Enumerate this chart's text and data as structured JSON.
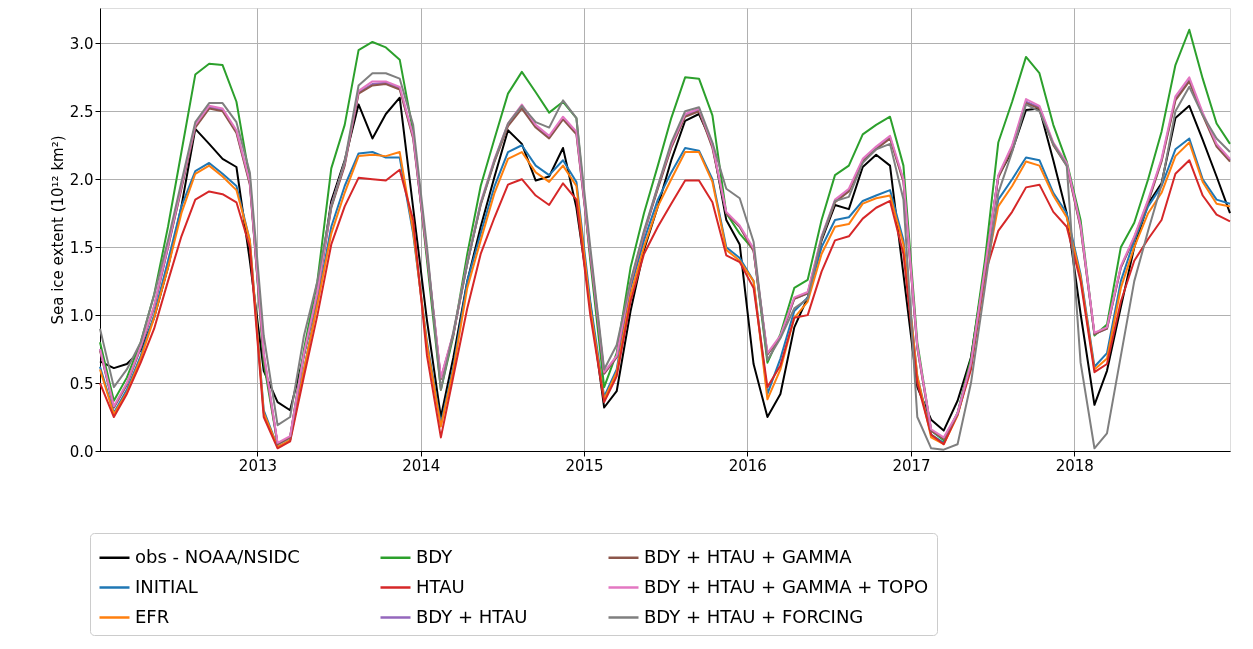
{
  "chart_data": {
    "type": "line",
    "ylabel": "Sea ice extent (10¹² km²)",
    "x": [
      "2012-01-15",
      "2012-02-15",
      "2012-03-15",
      "2012-04-15",
      "2012-05-15",
      "2012-06-15",
      "2012-07-15",
      "2012-08-15",
      "2012-09-15",
      "2012-10-15",
      "2012-11-15",
      "2012-12-15",
      "2013-01-15",
      "2013-02-15",
      "2013-03-15",
      "2013-04-15",
      "2013-05-15",
      "2013-06-15",
      "2013-07-15",
      "2013-08-15",
      "2013-09-15",
      "2013-10-15",
      "2013-11-15",
      "2013-12-15",
      "2014-01-15",
      "2014-02-15",
      "2014-03-15",
      "2014-04-15",
      "2014-05-15",
      "2014-06-15",
      "2014-07-15",
      "2014-08-15",
      "2014-09-15",
      "2014-10-15",
      "2014-11-15",
      "2014-12-15",
      "2015-01-15",
      "2015-02-15",
      "2015-03-15",
      "2015-04-15",
      "2015-05-15",
      "2015-06-15",
      "2015-07-15",
      "2015-08-15",
      "2015-09-15",
      "2015-10-15",
      "2015-11-15",
      "2015-12-15",
      "2016-01-15",
      "2016-02-15",
      "2016-03-15",
      "2016-04-15",
      "2016-05-15",
      "2016-06-15",
      "2016-07-15",
      "2016-08-15",
      "2016-09-15",
      "2016-10-15",
      "2016-11-15",
      "2016-12-15",
      "2017-01-15",
      "2017-02-15",
      "2017-03-15",
      "2017-04-15",
      "2017-05-15",
      "2017-06-15",
      "2017-07-15",
      "2017-08-15",
      "2017-09-15",
      "2017-10-15",
      "2017-11-15",
      "2017-12-15",
      "2018-01-15",
      "2018-02-15",
      "2018-03-15",
      "2018-04-15",
      "2018-05-15",
      "2018-06-15",
      "2018-07-15",
      "2018-08-15",
      "2018-09-15",
      "2018-10-15",
      "2018-11-15",
      "2018-12-15"
    ],
    "series": [
      {
        "name": "obs - NOAA/NSIDC",
        "color": "#000000",
        "values": [
          0.66,
          0.61,
          0.64,
          0.74,
          0.98,
          1.35,
          1.8,
          2.37,
          2.26,
          2.15,
          2.09,
          1.4,
          0.59,
          0.36,
          0.3,
          0.71,
          1.16,
          1.84,
          2.14,
          2.55,
          2.3,
          2.48,
          2.6,
          1.79,
          0.96,
          0.25,
          0.69,
          1.25,
          1.65,
          2.02,
          2.36,
          2.26,
          1.99,
          2.02,
          2.23,
          1.79,
          1.08,
          0.32,
          0.44,
          1.03,
          1.48,
          1.8,
          2.14,
          2.43,
          2.48,
          2.26,
          1.7,
          1.52,
          0.64,
          0.25,
          0.42,
          0.91,
          1.13,
          1.55,
          1.81,
          1.78,
          2.09,
          2.18,
          2.1,
          1.3,
          0.47,
          0.23,
          0.15,
          0.37,
          0.69,
          1.35,
          2.02,
          2.21,
          2.51,
          2.52,
          2.14,
          1.75,
          1.01,
          0.34,
          0.59,
          1.06,
          1.5,
          1.82,
          1.97,
          2.45,
          2.54,
          2.29,
          2.02,
          1.75
        ]
      },
      {
        "name": "INITIAL",
        "color": "#1f77b4",
        "values": [
          0.62,
          0.28,
          0.45,
          0.7,
          1.0,
          1.4,
          1.8,
          2.06,
          2.12,
          2.04,
          1.95,
          1.55,
          0.3,
          0.03,
          0.08,
          0.6,
          1.1,
          1.65,
          1.95,
          2.19,
          2.2,
          2.16,
          2.16,
          1.6,
          0.8,
          0.2,
          0.62,
          1.25,
          1.6,
          1.95,
          2.2,
          2.25,
          2.1,
          2.03,
          2.14,
          1.98,
          1.1,
          0.4,
          0.6,
          1.2,
          1.55,
          1.85,
          2.05,
          2.23,
          2.21,
          2.0,
          1.5,
          1.42,
          1.25,
          0.42,
          0.68,
          1.03,
          1.13,
          1.5,
          1.7,
          1.72,
          1.84,
          1.88,
          1.92,
          1.55,
          0.55,
          0.12,
          0.06,
          0.28,
          0.65,
          1.3,
          1.85,
          2.0,
          2.16,
          2.14,
          1.9,
          1.75,
          1.3,
          0.62,
          0.72,
          1.25,
          1.55,
          1.8,
          1.95,
          2.22,
          2.3,
          2.0,
          1.85,
          1.82
        ]
      },
      {
        "name": "EFR",
        "color": "#ff7f0e",
        "values": [
          0.6,
          0.27,
          0.43,
          0.68,
          0.98,
          1.35,
          1.75,
          2.04,
          2.1,
          2.02,
          1.92,
          1.55,
          0.28,
          0.03,
          0.08,
          0.6,
          1.08,
          1.6,
          1.9,
          2.17,
          2.18,
          2.17,
          2.2,
          1.62,
          0.78,
          0.18,
          0.6,
          1.2,
          1.55,
          1.9,
          2.15,
          2.2,
          2.05,
          1.98,
          2.1,
          1.95,
          1.05,
          0.38,
          0.58,
          1.15,
          1.5,
          1.8,
          2.0,
          2.2,
          2.2,
          1.98,
          1.48,
          1.4,
          1.25,
          0.38,
          0.6,
          0.98,
          1.1,
          1.45,
          1.65,
          1.67,
          1.82,
          1.86,
          1.88,
          1.52,
          0.55,
          0.1,
          0.05,
          0.26,
          0.63,
          1.28,
          1.8,
          1.95,
          2.13,
          2.1,
          1.88,
          1.72,
          1.28,
          0.6,
          0.68,
          1.2,
          1.5,
          1.75,
          1.9,
          2.17,
          2.27,
          1.98,
          1.82,
          1.8
        ]
      },
      {
        "name": "BDY",
        "color": "#2ca02c",
        "values": [
          0.8,
          0.37,
          0.54,
          0.8,
          1.15,
          1.65,
          2.2,
          2.77,
          2.85,
          2.84,
          2.57,
          2.0,
          0.65,
          0.05,
          0.1,
          0.75,
          1.25,
          2.08,
          2.4,
          2.95,
          3.01,
          2.97,
          2.88,
          2.35,
          1.4,
          0.45,
          0.85,
          1.45,
          1.95,
          2.3,
          2.63,
          2.79,
          2.64,
          2.49,
          2.57,
          2.45,
          1.4,
          0.47,
          0.72,
          1.35,
          1.75,
          2.1,
          2.45,
          2.75,
          2.74,
          2.47,
          1.75,
          1.6,
          1.48,
          0.65,
          0.86,
          1.2,
          1.26,
          1.7,
          2.03,
          2.1,
          2.33,
          2.4,
          2.46,
          2.1,
          0.8,
          0.15,
          0.08,
          0.28,
          0.68,
          1.4,
          2.27,
          2.57,
          2.9,
          2.78,
          2.4,
          2.13,
          1.7,
          0.85,
          0.93,
          1.5,
          1.68,
          2.0,
          2.35,
          2.84,
          3.1,
          2.74,
          2.41,
          2.26
        ]
      },
      {
        "name": "HTAU",
        "color": "#d62728",
        "values": [
          0.5,
          0.25,
          0.42,
          0.65,
          0.9,
          1.25,
          1.58,
          1.85,
          1.91,
          1.89,
          1.83,
          1.5,
          0.25,
          0.02,
          0.07,
          0.55,
          1.0,
          1.52,
          1.8,
          2.01,
          2.0,
          1.99,
          2.07,
          1.7,
          0.7,
          0.1,
          0.55,
          1.05,
          1.45,
          1.72,
          1.96,
          2.0,
          1.88,
          1.81,
          1.97,
          1.85,
          1.0,
          0.36,
          0.55,
          1.1,
          1.45,
          1.65,
          1.82,
          1.99,
          1.99,
          1.83,
          1.44,
          1.39,
          1.2,
          0.47,
          0.63,
          0.98,
          1.0,
          1.32,
          1.55,
          1.58,
          1.71,
          1.79,
          1.84,
          1.45,
          0.5,
          0.12,
          0.05,
          0.27,
          0.6,
          1.3,
          1.62,
          1.76,
          1.94,
          1.96,
          1.76,
          1.65,
          1.25,
          0.58,
          0.64,
          1.1,
          1.4,
          1.56,
          1.7,
          2.04,
          2.14,
          1.88,
          1.74,
          1.69
        ]
      },
      {
        "name": "BDY + HTAU",
        "color": "#9467bd",
        "values": [
          0.75,
          0.32,
          0.49,
          0.76,
          1.06,
          1.5,
          1.94,
          2.39,
          2.53,
          2.51,
          2.35,
          1.97,
          0.71,
          0.05,
          0.1,
          0.71,
          1.16,
          1.8,
          2.11,
          2.64,
          2.7,
          2.71,
          2.67,
          2.31,
          1.45,
          0.53,
          0.86,
          1.38,
          1.82,
          2.14,
          2.4,
          2.53,
          2.39,
          2.31,
          2.45,
          2.34,
          1.45,
          0.57,
          0.69,
          1.23,
          1.6,
          1.94,
          2.24,
          2.47,
          2.51,
          2.24,
          1.75,
          1.65,
          1.48,
          0.71,
          0.84,
          1.12,
          1.16,
          1.57,
          1.84,
          1.92,
          2.14,
          2.23,
          2.31,
          1.99,
          0.76,
          0.15,
          0.09,
          0.27,
          0.64,
          1.33,
          2.02,
          2.24,
          2.57,
          2.53,
          2.26,
          2.11,
          1.65,
          0.86,
          0.9,
          1.35,
          1.57,
          1.84,
          2.14,
          2.59,
          2.73,
          2.48,
          2.25,
          2.14
        ]
      },
      {
        "name": "BDY + HTAU + GAMMA",
        "color": "#8c564b",
        "values": [
          0.74,
          0.32,
          0.49,
          0.76,
          1.06,
          1.5,
          1.93,
          2.38,
          2.52,
          2.5,
          2.34,
          1.96,
          0.7,
          0.05,
          0.1,
          0.71,
          1.16,
          1.79,
          2.1,
          2.63,
          2.69,
          2.7,
          2.66,
          2.3,
          1.44,
          0.53,
          0.86,
          1.38,
          1.81,
          2.13,
          2.39,
          2.52,
          2.38,
          2.3,
          2.44,
          2.33,
          1.44,
          0.57,
          0.69,
          1.23,
          1.6,
          1.93,
          2.23,
          2.46,
          2.5,
          2.23,
          1.75,
          1.65,
          1.47,
          0.71,
          0.84,
          1.12,
          1.16,
          1.56,
          1.83,
          1.91,
          2.13,
          2.22,
          2.3,
          1.98,
          0.76,
          0.15,
          0.09,
          0.27,
          0.64,
          1.33,
          2.01,
          2.23,
          2.56,
          2.52,
          2.25,
          2.1,
          1.64,
          0.86,
          0.9,
          1.35,
          1.57,
          1.83,
          2.13,
          2.58,
          2.72,
          2.47,
          2.24,
          2.13
        ]
      },
      {
        "name": "BDY + HTAU + GAMMA + TOPO",
        "color": "#e377c2",
        "values": [
          0.75,
          0.33,
          0.5,
          0.77,
          1.07,
          1.51,
          1.95,
          2.4,
          2.54,
          2.52,
          2.36,
          1.98,
          0.72,
          0.06,
          0.11,
          0.72,
          1.17,
          1.81,
          2.12,
          2.65,
          2.72,
          2.72,
          2.68,
          2.32,
          1.46,
          0.54,
          0.87,
          1.39,
          1.83,
          2.15,
          2.41,
          2.55,
          2.4,
          2.32,
          2.46,
          2.35,
          1.46,
          0.58,
          0.7,
          1.24,
          1.61,
          1.95,
          2.25,
          2.48,
          2.52,
          2.25,
          1.76,
          1.66,
          1.49,
          0.72,
          0.85,
          1.13,
          1.17,
          1.58,
          1.85,
          1.93,
          2.15,
          2.24,
          2.32,
          2.0,
          0.77,
          0.16,
          0.1,
          0.28,
          0.65,
          1.34,
          2.03,
          2.25,
          2.59,
          2.54,
          2.27,
          2.12,
          1.66,
          0.87,
          0.91,
          1.36,
          1.58,
          1.85,
          2.15,
          2.61,
          2.75,
          2.49,
          2.26,
          2.15
        ]
      },
      {
        "name": "BDY + HTAU + FORCING",
        "color": "#7f7f7f",
        "values": [
          0.9,
          0.47,
          0.6,
          0.8,
          1.15,
          1.55,
          1.98,
          2.42,
          2.56,
          2.56,
          2.42,
          2.05,
          0.85,
          0.19,
          0.25,
          0.85,
          1.25,
          1.8,
          2.13,
          2.69,
          2.78,
          2.78,
          2.74,
          2.4,
          1.5,
          0.45,
          0.88,
          1.38,
          1.82,
          2.14,
          2.41,
          2.54,
          2.42,
          2.38,
          2.58,
          2.45,
          1.5,
          0.6,
          0.78,
          1.25,
          1.62,
          1.95,
          2.27,
          2.5,
          2.53,
          2.27,
          1.93,
          1.86,
          1.54,
          0.67,
          0.83,
          1.05,
          1.12,
          1.57,
          1.84,
          1.87,
          2.12,
          2.22,
          2.26,
          1.85,
          0.25,
          0.02,
          0.01,
          0.05,
          0.5,
          1.2,
          1.9,
          2.2,
          2.55,
          2.5,
          2.26,
          2.1,
          0.65,
          0.02,
          0.13,
          0.7,
          1.25,
          1.62,
          1.96,
          2.5,
          2.68,
          2.47,
          2.3,
          2.2
        ]
      }
    ],
    "xlim": [
      "2012-01-15",
      "2018-12-15"
    ],
    "xticks": [
      "2013",
      "2014",
      "2015",
      "2016",
      "2017",
      "2018"
    ],
    "ylim": [
      0,
      3.26
    ],
    "yticks": [
      {
        "value": 0,
        "label": "0.0"
      },
      {
        "value": 0.5,
        "label": "0.5"
      },
      {
        "value": 1,
        "label": "1.0"
      },
      {
        "value": 1.5,
        "label": "1.5"
      },
      {
        "value": 2,
        "label": "2.0"
      },
      {
        "value": 2.5,
        "label": "2.5"
      },
      {
        "value": 3,
        "label": "3.0"
      }
    ],
    "grid": true,
    "legend": "bottom",
    "marker": "none",
    "line_style": "solid"
  }
}
